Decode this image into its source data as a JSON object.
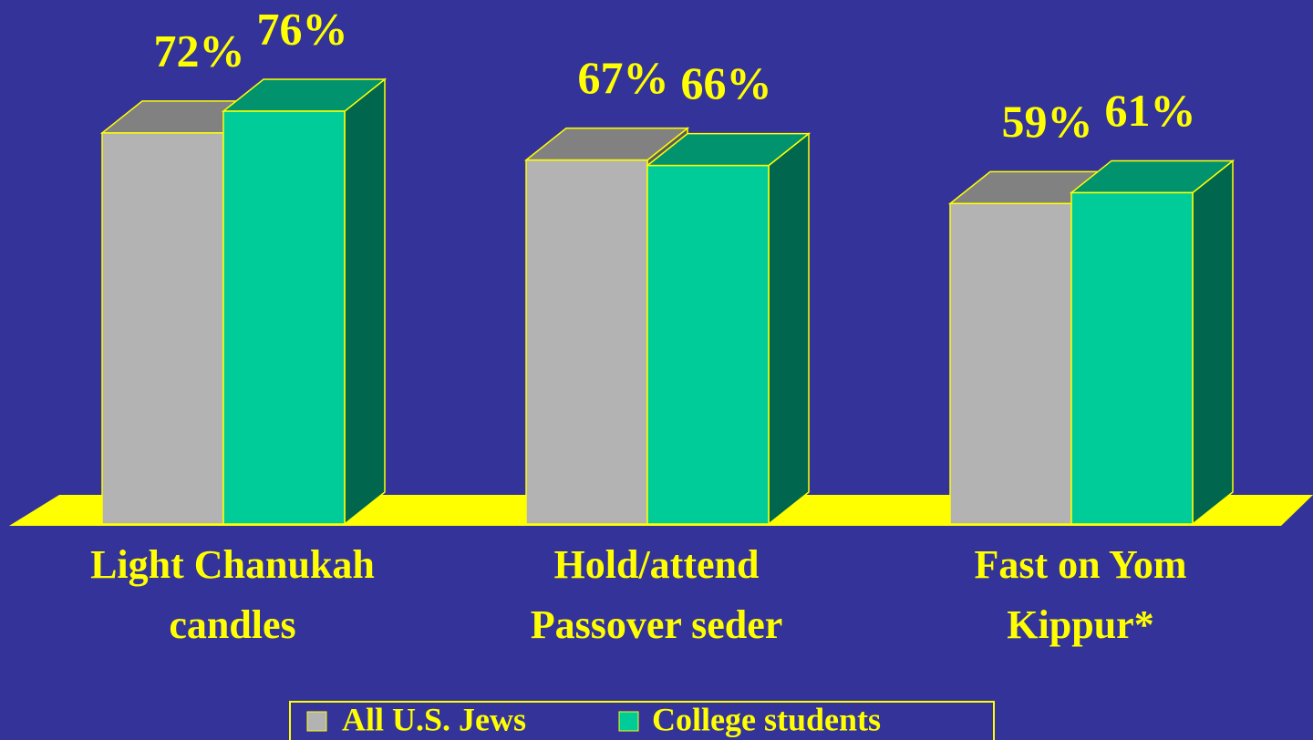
{
  "chart_data": {
    "type": "bar",
    "categories": [
      [
        "Light Chanukah",
        "candles"
      ],
      [
        "Hold/attend",
        "Passover seder"
      ],
      [
        "Fast on Yom",
        "Kippur*"
      ]
    ],
    "series": [
      {
        "name": "All U.S. Jews",
        "color": "#b3b3b3",
        "values": [
          72,
          67,
          59
        ],
        "value_labels": [
          "72%",
          "67%",
          "59%"
        ]
      },
      {
        "name": "College students",
        "color": "#00cc99",
        "values": [
          76,
          66,
          61
        ],
        "value_labels": [
          "76%",
          "66%",
          "61%"
        ]
      }
    ],
    "legend": "bottom"
  }
}
